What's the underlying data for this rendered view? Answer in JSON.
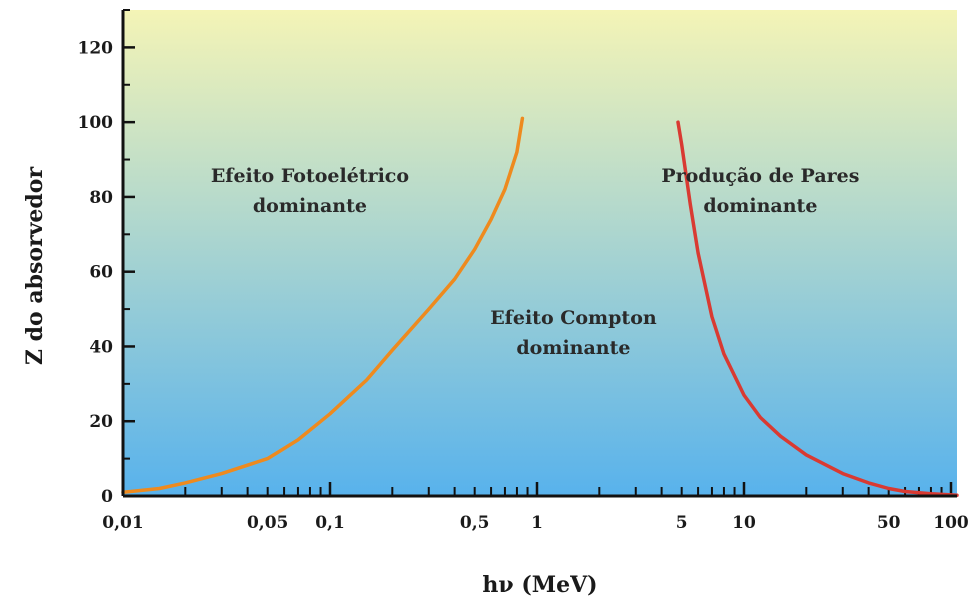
{
  "chart_data": {
    "type": "line",
    "xscale": "log",
    "xlim": [
      0.01,
      120
    ],
    "ylim": [
      0,
      130
    ],
    "xlabel": "hν  (MeV)",
    "ylabel": "Z do absorvedor",
    "grid": false,
    "legend": "none",
    "x_tick_values": [
      0.01,
      0.05,
      0.1,
      0.5,
      1,
      5,
      10,
      50,
      100
    ],
    "x_tick_labels": [
      "0,01",
      "0,05",
      "0,1",
      "0,5",
      "1",
      "5",
      "10",
      "50",
      "100"
    ],
    "y_ticks": [
      0,
      20,
      40,
      60,
      80,
      100,
      120
    ],
    "background_gradient": {
      "top": "#f4f4b6",
      "bottom": "#58b2ec"
    },
    "series": [
      {
        "color": "#ee8a1e",
        "x": [
          0.01,
          0.015,
          0.02,
          0.03,
          0.05,
          0.07,
          0.1,
          0.15,
          0.2,
          0.3,
          0.4,
          0.5,
          0.6,
          0.7,
          0.8,
          0.85
        ],
        "y": [
          1,
          2,
          3.5,
          6,
          10,
          15,
          22,
          31,
          39,
          50,
          58,
          66,
          74,
          82,
          92,
          101
        ]
      },
      {
        "color": "#d93a32",
        "x": [
          4.8,
          5,
          5.5,
          6,
          7,
          8,
          10,
          12,
          15,
          20,
          30,
          40,
          50,
          60,
          80,
          100,
          120
        ],
        "y": [
          100,
          94,
          78,
          65,
          48,
          38,
          27,
          21,
          16,
          11,
          6,
          3.5,
          2,
          1.2,
          0.6,
          0.3,
          0.2
        ]
      }
    ],
    "annotations": [
      {
        "lines": [
          "Efeito Fotoelétrico",
          "dominante"
        ],
        "x": 0.08,
        "y": 84
      },
      {
        "lines": [
          "Efeito Compton",
          "dominante"
        ],
        "x": 1.5,
        "y": 46
      },
      {
        "lines": [
          "Produção de Pares",
          "dominante"
        ],
        "x": 12,
        "y": 84
      }
    ]
  }
}
